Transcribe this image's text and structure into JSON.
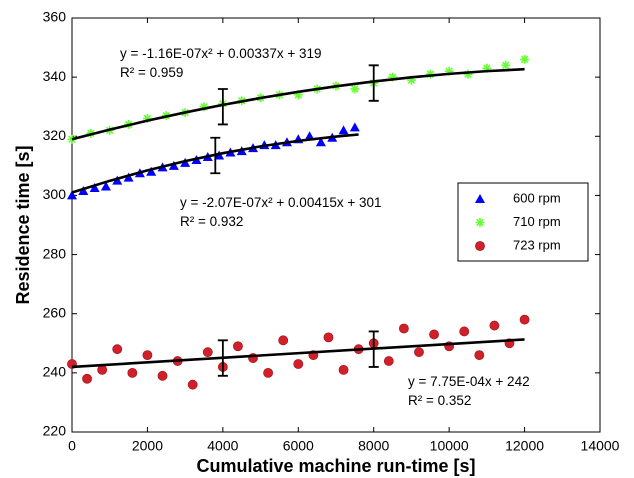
{
  "chart_data": {
    "type": "scatter",
    "x_label": "Cumulative machine run-time [s]",
    "y_label": "Residence time [s]",
    "xlim": [
      0,
      14000
    ],
    "xticks": [
      0,
      2000,
      4000,
      6000,
      8000,
      10000,
      12000,
      14000
    ],
    "ylim": [
      220,
      360
    ],
    "yticks": [
      220,
      240,
      260,
      280,
      300,
      320,
      340,
      360
    ],
    "grid": false,
    "legend": "right",
    "series": [
      {
        "name": "600 rpm",
        "color": "#0000ff",
        "marker": "triangle",
        "x": [
          0,
          300,
          600,
          900,
          1200,
          1500,
          1800,
          2100,
          2400,
          2700,
          3000,
          3300,
          3600,
          3900,
          4200,
          4500,
          4800,
          5100,
          5400,
          5700,
          6000,
          6300,
          6600,
          6900,
          7200,
          7500
        ],
        "values": [
          300,
          301.5,
          302.5,
          303,
          305,
          306,
          307.5,
          308,
          309.5,
          310,
          311,
          312,
          313,
          313.5,
          314.5,
          315,
          316,
          317,
          317,
          318,
          319,
          320,
          318,
          319.5,
          322,
          323
        ]
      },
      {
        "name": "710 rpm",
        "color": "#66ff33",
        "marker": "star",
        "x": [
          0,
          500,
          1000,
          1500,
          2000,
          2500,
          3000,
          3500,
          4000,
          4500,
          5000,
          5500,
          6000,
          6500,
          7000,
          7500,
          8000,
          8500,
          9000,
          9500,
          10000,
          10500,
          11000,
          11500,
          12000
        ],
        "values": [
          319,
          321,
          322,
          324,
          326,
          327,
          328,
          330,
          331,
          332,
          333,
          334,
          334,
          336,
          337,
          336,
          338,
          340,
          339,
          341,
          342,
          341,
          343,
          344,
          346
        ]
      },
      {
        "name": "723 rpm",
        "color": "#d0202a",
        "marker": "circle",
        "x": [
          0,
          400,
          800,
          1200,
          1600,
          2000,
          2400,
          2800,
          3200,
          3600,
          4000,
          4400,
          4800,
          5200,
          5600,
          6000,
          6400,
          6800,
          7200,
          7600,
          8000,
          8400,
          8800,
          9200,
          9600,
          10000,
          10400,
          10800,
          11200,
          11600,
          12000
        ],
        "values": [
          243,
          238,
          241,
          248,
          240,
          246,
          239,
          244,
          236,
          247,
          242,
          249,
          245,
          240,
          251,
          243,
          246,
          252,
          241,
          248,
          250,
          244,
          255,
          247,
          253,
          249,
          254,
          246,
          256,
          250,
          258
        ]
      }
    ],
    "fits": [
      {
        "color": "#000000",
        "x": [
          0,
          1000,
          2000,
          3000,
          4000,
          5000,
          6000,
          7000,
          8000,
          9000,
          10000,
          11000,
          12000
        ],
        "values": [
          319,
          322.25,
          325.28,
          328.07,
          330.62,
          332.95,
          335.04,
          336.91,
          338.54,
          339.93,
          341.1,
          342.03,
          342.68
        ]
      },
      {
        "color": "#000000",
        "x": [
          0,
          1000,
          2000,
          3000,
          4000,
          5000,
          6000,
          7000,
          7600
        ],
        "values": [
          301,
          304.94,
          308.47,
          311.59,
          314.29,
          316.58,
          318.45,
          319.91,
          320.6
        ]
      },
      {
        "color": "#000000",
        "x": [
          0,
          12000
        ],
        "values": [
          242,
          251.3
        ]
      }
    ],
    "error_bars": [
      {
        "x": 4000,
        "y": 330,
        "error": 6
      },
      {
        "x": 8000,
        "y": 338,
        "error": 6
      },
      {
        "x": 3800,
        "y": 313.5,
        "error": 6
      },
      {
        "x": 4000,
        "y": 245,
        "error": 6
      },
      {
        "x": 8000,
        "y": 248,
        "error": 6
      }
    ],
    "annotations": [
      {
        "lines": [
          "y = -1.16E-07x² + 0.00337x + 319",
          "R² = 0.959"
        ]
      },
      {
        "lines": [
          "y = -2.07E-07x² + 0.00415x + 301",
          "R² = 0.932"
        ]
      },
      {
        "lines": [
          "y = 7.75E-04x + 242",
          "R² = 0.352"
        ]
      }
    ]
  }
}
